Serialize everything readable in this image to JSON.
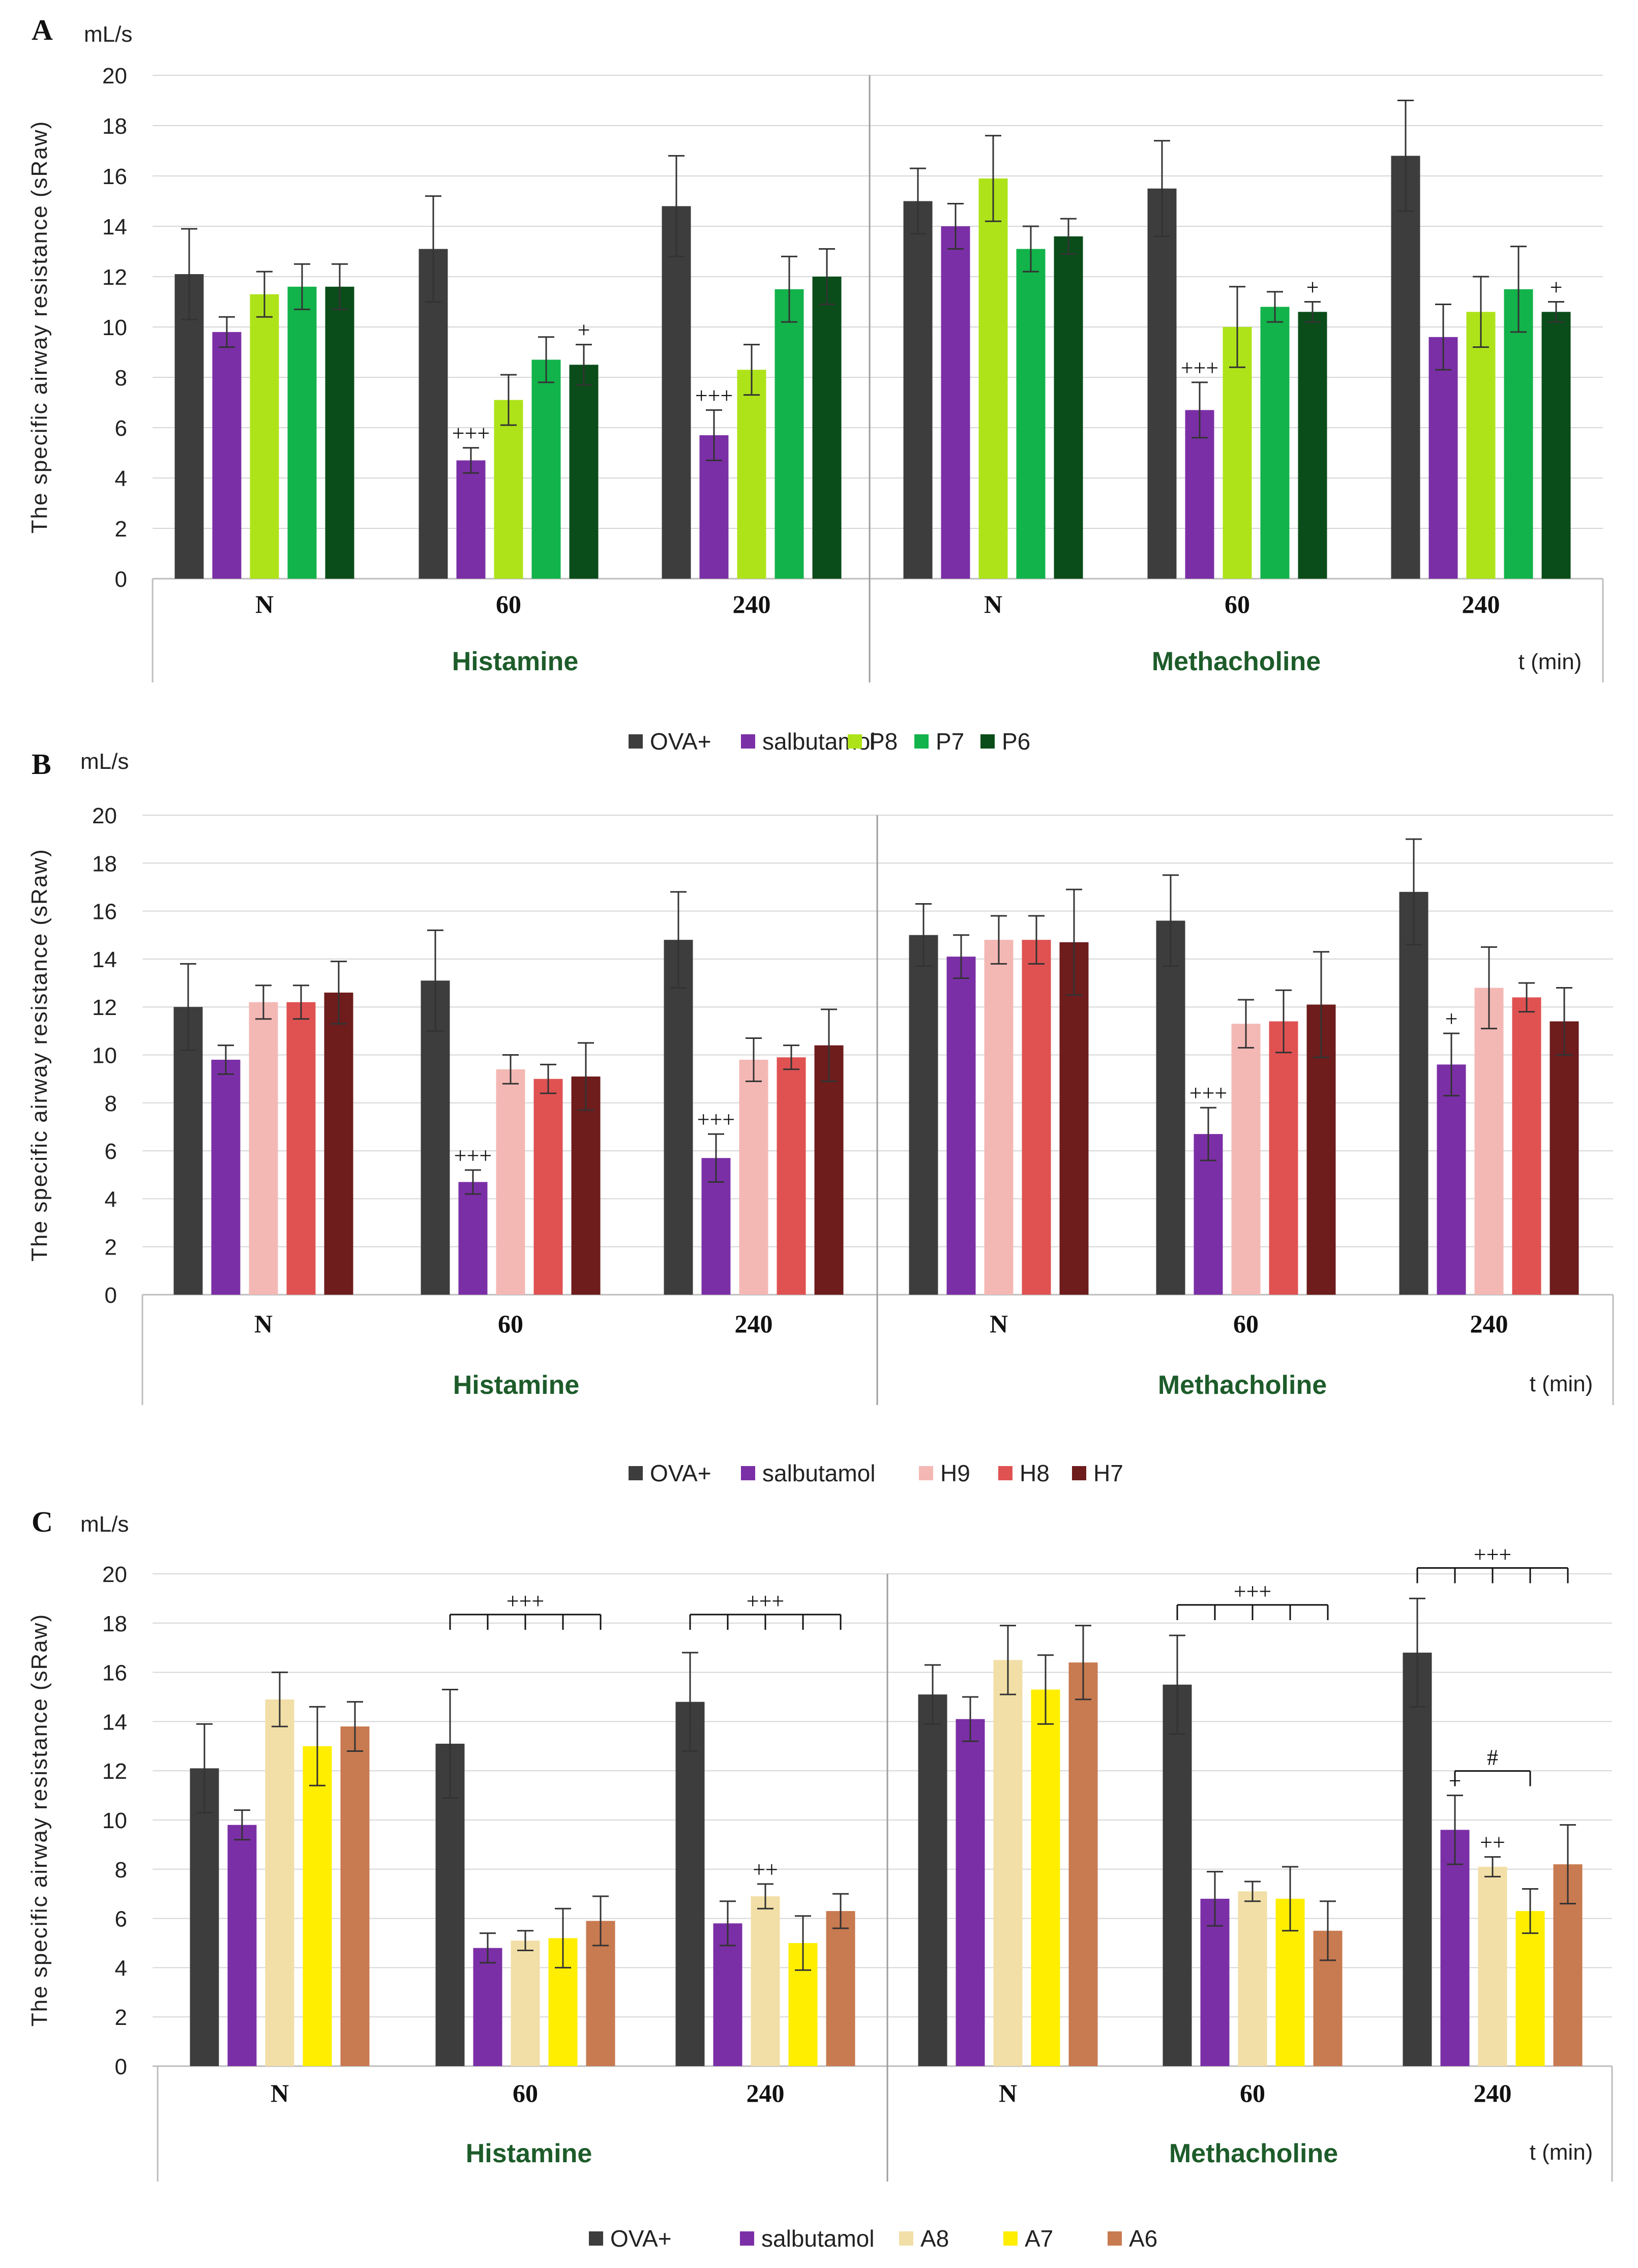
{
  "chart_data": [
    {
      "panel": "A",
      "type": "bar",
      "unit": "mL/s",
      "ylabel": "The specific airway resistance (sRaw)",
      "ylim": [
        0,
        20
      ],
      "yticks": [
        0,
        2,
        4,
        6,
        8,
        10,
        12,
        14,
        16,
        18,
        20
      ],
      "groups": [
        {
          "name": "Histamine",
          "categories": [
            "N",
            "60",
            "240"
          ]
        },
        {
          "name": "Methacholine",
          "categories": [
            "N",
            "60",
            "240"
          ]
        }
      ],
      "xunit": "t (min)",
      "series": [
        {
          "name": "OVA+",
          "color": "#3d3d3d",
          "values": [
            12.1,
            13.1,
            14.8,
            15.0,
            15.5,
            16.8
          ],
          "errors": [
            1.8,
            2.1,
            2.0,
            1.3,
            1.9,
            2.2
          ]
        },
        {
          "name": "salbutamol",
          "color": "#7b2fa6",
          "values": [
            9.8,
            4.7,
            5.7,
            14.0,
            6.7,
            9.6
          ],
          "errors": [
            0.6,
            0.5,
            1.0,
            0.9,
            1.1,
            1.3
          ]
        },
        {
          "name": "P8",
          "color": "#aee31a",
          "values": [
            11.3,
            7.1,
            8.3,
            15.9,
            10.0,
            10.6
          ],
          "errors": [
            0.9,
            1.0,
            1.0,
            1.7,
            1.6,
            1.4
          ]
        },
        {
          "name": "P7",
          "color": "#12b34a",
          "values": [
            11.6,
            8.7,
            11.5,
            13.1,
            10.8,
            11.5
          ],
          "errors": [
            0.9,
            0.9,
            1.3,
            0.9,
            0.6,
            1.7
          ]
        },
        {
          "name": "P6",
          "color": "#0a4d1a",
          "values": [
            11.6,
            8.5,
            12.0,
            13.6,
            10.6,
            10.6
          ],
          "errors": [
            0.9,
            0.8,
            1.1,
            0.7,
            0.4,
            0.4
          ]
        }
      ],
      "annotations": [
        {
          "text": "+++",
          "group": 0,
          "category": 1,
          "series": 1
        },
        {
          "text": "+",
          "group": 0,
          "category": 1,
          "series": 4
        },
        {
          "text": "+++",
          "group": 0,
          "category": 2,
          "series": 1
        },
        {
          "text": "+++",
          "group": 1,
          "category": 1,
          "series": 1
        },
        {
          "text": "+",
          "group": 1,
          "category": 1,
          "series": 4
        },
        {
          "text": "+",
          "group": 1,
          "category": 2,
          "series": 4
        }
      ]
    },
    {
      "panel": "B",
      "type": "bar",
      "unit": "mL/s",
      "ylabel": "The specific airway resistance (sRaw)",
      "ylim": [
        0,
        20
      ],
      "yticks": [
        0,
        2,
        4,
        6,
        8,
        10,
        12,
        14,
        16,
        18,
        20
      ],
      "groups": [
        {
          "name": "Histamine",
          "categories": [
            "N",
            "60",
            "240"
          ]
        },
        {
          "name": "Methacholine",
          "categories": [
            "N",
            "60",
            "240"
          ]
        }
      ],
      "xunit": "t (min)",
      "series": [
        {
          "name": "OVA+",
          "color": "#3d3d3d",
          "values": [
            12.0,
            13.1,
            14.8,
            15.0,
            15.6,
            16.8
          ],
          "errors": [
            1.8,
            2.1,
            2.0,
            1.3,
            1.9,
            2.2
          ]
        },
        {
          "name": "salbutamol",
          "color": "#7b2fa6",
          "values": [
            9.8,
            4.7,
            5.7,
            14.1,
            6.7,
            9.6
          ],
          "errors": [
            0.6,
            0.5,
            1.0,
            0.9,
            1.1,
            1.3
          ]
        },
        {
          "name": "H9",
          "color": "#f4b8b4",
          "values": [
            12.2,
            9.4,
            9.8,
            14.8,
            11.3,
            12.8
          ],
          "errors": [
            0.7,
            0.6,
            0.9,
            1.0,
            1.0,
            1.7
          ]
        },
        {
          "name": "H8",
          "color": "#e05252",
          "values": [
            12.2,
            9.0,
            9.9,
            14.8,
            11.4,
            12.4
          ],
          "errors": [
            0.7,
            0.6,
            0.5,
            1.0,
            1.3,
            0.6
          ]
        },
        {
          "name": "H7",
          "color": "#6e1c1c",
          "values": [
            12.6,
            9.1,
            10.4,
            14.7,
            12.1,
            11.4
          ],
          "errors": [
            1.3,
            1.4,
            1.5,
            2.2,
            2.2,
            1.4
          ]
        }
      ],
      "annotations": [
        {
          "text": "+++",
          "group": 0,
          "category": 1,
          "series": 1
        },
        {
          "text": "+++",
          "group": 0,
          "category": 2,
          "series": 1
        },
        {
          "text": "+++",
          "group": 1,
          "category": 1,
          "series": 1
        },
        {
          "text": "+",
          "group": 1,
          "category": 2,
          "series": 1
        }
      ]
    },
    {
      "panel": "C",
      "type": "bar",
      "unit": "mL/s",
      "ylabel": "The specific airway resistance (sRaw)",
      "ylim": [
        0,
        20
      ],
      "yticks": [
        0,
        2,
        4,
        6,
        8,
        10,
        12,
        14,
        16,
        18,
        20
      ],
      "groups": [
        {
          "name": "Histamine",
          "categories": [
            "N",
            "60",
            "240"
          ]
        },
        {
          "name": "Methacholine",
          "categories": [
            "N",
            "60",
            "240"
          ]
        }
      ],
      "xunit": "t (min)",
      "series": [
        {
          "name": "OVA+",
          "color": "#3d3d3d",
          "values": [
            12.1,
            13.1,
            14.8,
            15.1,
            15.5,
            16.8
          ],
          "errors": [
            1.8,
            2.2,
            2.0,
            1.2,
            2.0,
            2.2
          ]
        },
        {
          "name": "salbutamol",
          "color": "#7b2fa6",
          "values": [
            9.8,
            4.8,
            5.8,
            14.1,
            6.8,
            9.6
          ],
          "errors": [
            0.6,
            0.6,
            0.9,
            0.9,
            1.1,
            1.4
          ]
        },
        {
          "name": "A8",
          "color": "#f2dfa7",
          "values": [
            14.9,
            5.1,
            6.9,
            16.5,
            7.1,
            8.1
          ],
          "errors": [
            1.1,
            0.4,
            0.5,
            1.4,
            0.4,
            0.4
          ]
        },
        {
          "name": "A7",
          "color": "#ffee00",
          "values": [
            13.0,
            5.2,
            5.0,
            15.3,
            6.8,
            6.3
          ],
          "errors": [
            1.6,
            1.2,
            1.1,
            1.4,
            1.3,
            0.9
          ]
        },
        {
          "name": "A6",
          "color": "#c87a50",
          "values": [
            13.8,
            5.9,
            6.3,
            16.4,
            5.5,
            8.2
          ],
          "errors": [
            1.0,
            1.0,
            0.7,
            1.5,
            1.2,
            1.6
          ]
        }
      ],
      "annotations": [
        {
          "text": "++",
          "group": 0,
          "category": 2,
          "series": 2
        },
        {
          "text": "+",
          "group": 1,
          "category": 2,
          "series": 1
        },
        {
          "text": "++",
          "group": 1,
          "category": 2,
          "series": 2
        }
      ],
      "brackets": [
        {
          "text": "+++",
          "group": 0,
          "category": 1,
          "from_series": 0,
          "to_series": 4
        },
        {
          "text": "+++",
          "group": 0,
          "category": 2,
          "from_series": 0,
          "to_series": 4
        },
        {
          "text": "+++",
          "group": 1,
          "category": 1,
          "from_series": 0,
          "to_series": 4
        },
        {
          "text": "+++",
          "group": 1,
          "category": 2,
          "from_series": 0,
          "to_series": 4
        },
        {
          "text": "#",
          "group": 1,
          "category": 2,
          "from_series": 1,
          "to_series": 3
        }
      ]
    }
  ]
}
